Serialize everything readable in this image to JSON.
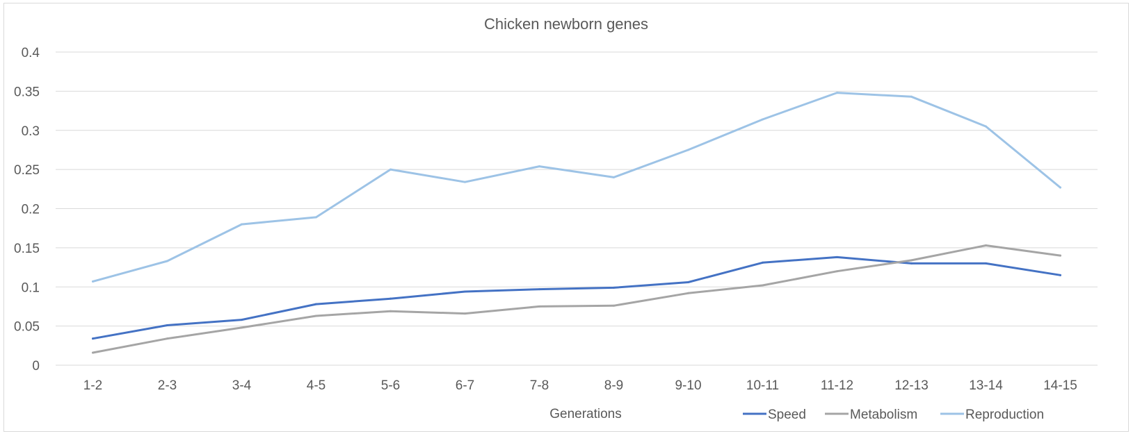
{
  "chart_data": {
    "type": "line",
    "title": "Chicken newborn genes",
    "xlabel": "Generations",
    "ylabel": "",
    "categories": [
      "1-2",
      "2-3",
      "3-4",
      "4-5",
      "5-6",
      "6-7",
      "7-8",
      "8-9",
      "9-10",
      "10-11",
      "11-12",
      "12-13",
      "13-14",
      "14-15"
    ],
    "ylim": [
      0,
      0.4
    ],
    "yticks": [
      "0",
      "0.05",
      "0.1",
      "0.15",
      "0.2",
      "0.25",
      "0.3",
      "0.35",
      "0.4"
    ],
    "ytick_values": [
      0,
      0.05,
      0.1,
      0.15,
      0.2,
      0.25,
      0.3,
      0.35,
      0.4
    ],
    "grid": true,
    "legend_position": "bottom-right",
    "series": [
      {
        "name": "Speed",
        "color": "#4472c4",
        "values": [
          0.034,
          0.051,
          0.058,
          0.078,
          0.085,
          0.094,
          0.097,
          0.099,
          0.106,
          0.131,
          0.138,
          0.13,
          0.13,
          0.115
        ]
      },
      {
        "name": "Metabolism",
        "color": "#a5a5a5",
        "values": [
          0.016,
          0.034,
          0.048,
          0.063,
          0.069,
          0.066,
          0.075,
          0.076,
          0.092,
          0.102,
          0.12,
          0.134,
          0.153,
          0.14
        ]
      },
      {
        "name": "Reproduction",
        "color": "#9dc3e6",
        "values": [
          0.107,
          0.133,
          0.18,
          0.189,
          0.25,
          0.234,
          0.254,
          0.24,
          0.275,
          0.314,
          0.348,
          0.343,
          0.305,
          0.227
        ]
      }
    ]
  }
}
